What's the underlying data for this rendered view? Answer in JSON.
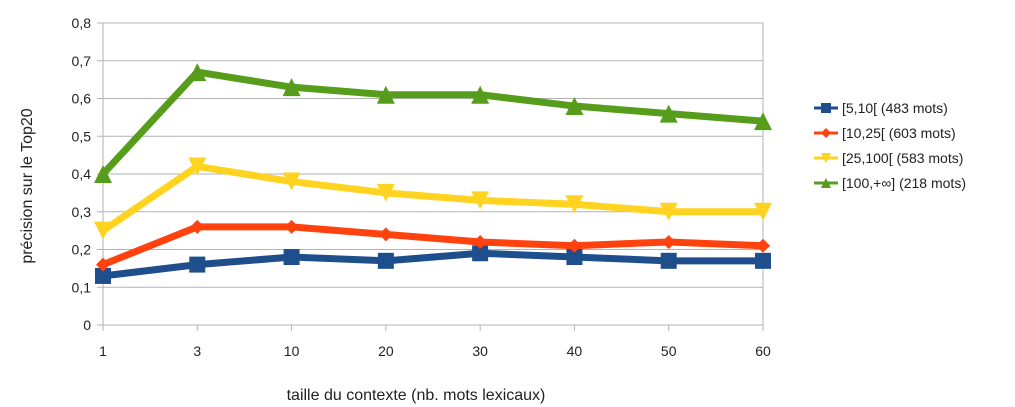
{
  "chart_data": {
    "type": "line",
    "categories": [
      "1",
      "3",
      "10",
      "20",
      "30",
      "40",
      "50",
      "60"
    ],
    "series": [
      {
        "name": "[5,10[ (483 mots)",
        "color": "#1f4e8c",
        "marker": "square",
        "values": [
          0.13,
          0.16,
          0.18,
          0.17,
          0.19,
          0.18,
          0.17,
          0.17
        ]
      },
      {
        "name": "[10,25[ (603 mots)",
        "color": "#ff420e",
        "marker": "diamond",
        "values": [
          0.16,
          0.26,
          0.26,
          0.24,
          0.22,
          0.21,
          0.22,
          0.21
        ]
      },
      {
        "name": "[25,100[ (583 mots)",
        "color": "#ffd320",
        "marker": "triangle-down",
        "values": [
          0.25,
          0.42,
          0.38,
          0.35,
          0.33,
          0.32,
          0.3,
          0.3
        ]
      },
      {
        "name": "[100,+∞] (218 mots)",
        "color": "#579d1c",
        "marker": "triangle-up",
        "values": [
          0.4,
          0.67,
          0.63,
          0.61,
          0.61,
          0.58,
          0.56,
          0.54
        ]
      }
    ],
    "xlabel": "taille du contexte (nb. mots lexicaux)",
    "ylabel": "précision sur le Top20",
    "ylim": [
      0,
      0.8
    ],
    "yticks": [
      "0",
      "0,1",
      "0,2",
      "0,3",
      "0,4",
      "0,5",
      "0,6",
      "0,7",
      "0,8"
    ],
    "grid": true,
    "legend_position": "right"
  }
}
